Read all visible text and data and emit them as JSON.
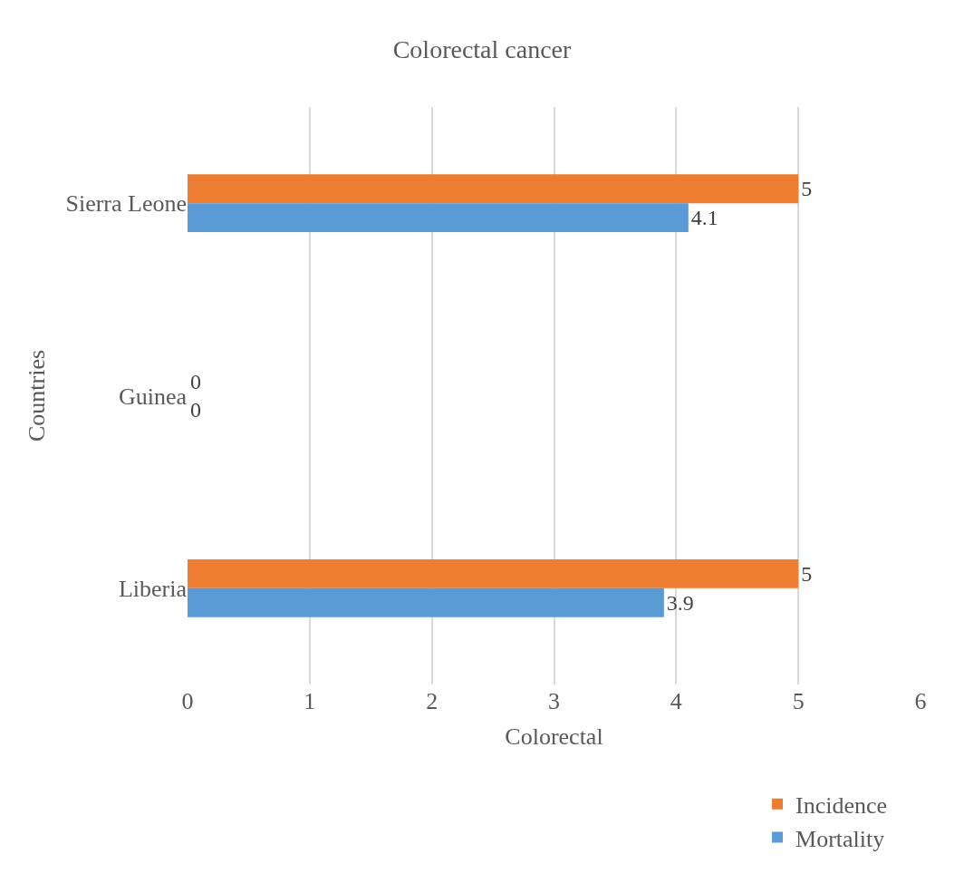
{
  "chart_data": {
    "type": "bar",
    "orientation": "horizontal",
    "title": "Colorectal cancer",
    "xlabel": "Colorectal",
    "ylabel": "Countries",
    "categories": [
      "Sierra Leone",
      "Guinea",
      "Liberia"
    ],
    "series": [
      {
        "name": "Incidence",
        "color": "#ed7d31",
        "values": [
          5,
          0,
          5
        ]
      },
      {
        "name": "Mortality",
        "color": "#5b9bd5",
        "values": [
          4.1,
          0,
          3.9
        ]
      }
    ],
    "xlim": [
      0,
      6
    ],
    "xticks": [
      0,
      1,
      2,
      3,
      4,
      5,
      6
    ],
    "grid": "x",
    "legend": "bottom right",
    "data_labels": true
  }
}
